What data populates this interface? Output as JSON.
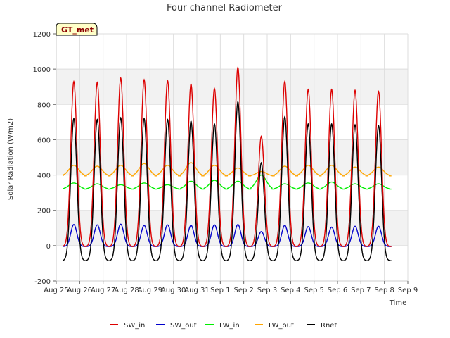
{
  "chart_data": {
    "type": "line",
    "title": "Four channel Radiometer",
    "xlabel": "Time",
    "ylabel": "Solar Radiation (W/m2)",
    "ylim": [
      -200,
      1200
    ],
    "yticks": [
      -200,
      0,
      200,
      400,
      600,
      800,
      1000,
      1200
    ],
    "xlim": [
      0,
      15
    ],
    "xticks": [
      {
        "pos": 0,
        "label": "Aug 25"
      },
      {
        "pos": 1,
        "label": "Aug 26"
      },
      {
        "pos": 2,
        "label": "Aug 27"
      },
      {
        "pos": 3,
        "label": "Aug 28"
      },
      {
        "pos": 4,
        "label": "Aug 29"
      },
      {
        "pos": 5,
        "label": "Aug 30"
      },
      {
        "pos": 6,
        "label": "Aug 31"
      },
      {
        "pos": 7,
        "label": "Sep 1"
      },
      {
        "pos": 8,
        "label": "Sep 2"
      },
      {
        "pos": 9,
        "label": "Sep 3"
      },
      {
        "pos": 10,
        "label": "Sep 4"
      },
      {
        "pos": 11,
        "label": "Sep 5"
      },
      {
        "pos": 12,
        "label": "Sep 6"
      },
      {
        "pos": 13,
        "label": "Sep 7"
      },
      {
        "pos": 14,
        "label": "Sep 8"
      },
      {
        "pos": 15,
        "label": "Sep 9"
      }
    ],
    "x_start": 0.3,
    "x_end": 14.3,
    "noon_offset": 0.75,
    "peak_width": 0.13,
    "series": [
      {
        "name": "SW_in",
        "color": "#dd0000",
        "base": -5,
        "peaks": [
          930,
          925,
          950,
          940,
          935,
          915,
          890,
          1010,
          620,
          930,
          885,
          885,
          880,
          875
        ]
      },
      {
        "name": "SW_out",
        "color": "#0000cc",
        "base": -5,
        "peaks": [
          120,
          118,
          122,
          115,
          118,
          115,
          118,
          120,
          80,
          115,
          108,
          105,
          110,
          110
        ]
      },
      {
        "name": "LW_in",
        "color": "#00ee00",
        "base": 320,
        "peaks": [
          355,
          350,
          345,
          355,
          345,
          365,
          370,
          365,
          400,
          350,
          355,
          360,
          350,
          350
        ]
      },
      {
        "name": "LW_out",
        "color": "#ffa500",
        "base": 395,
        "peaks": [
          455,
          450,
          455,
          465,
          455,
          470,
          455,
          440,
          420,
          450,
          455,
          455,
          445,
          445
        ]
      },
      {
        "name": "Rnet",
        "color": "#000000",
        "base": -85,
        "peaks": [
          720,
          715,
          725,
          720,
          715,
          705,
          690,
          815,
          470,
          730,
          690,
          690,
          685,
          680
        ]
      }
    ],
    "legend": [
      "SW_in",
      "SW_out",
      "LW_in",
      "LW_out",
      "Rnet"
    ],
    "legend_position": "bottom-center",
    "annotation": "GT_met"
  }
}
